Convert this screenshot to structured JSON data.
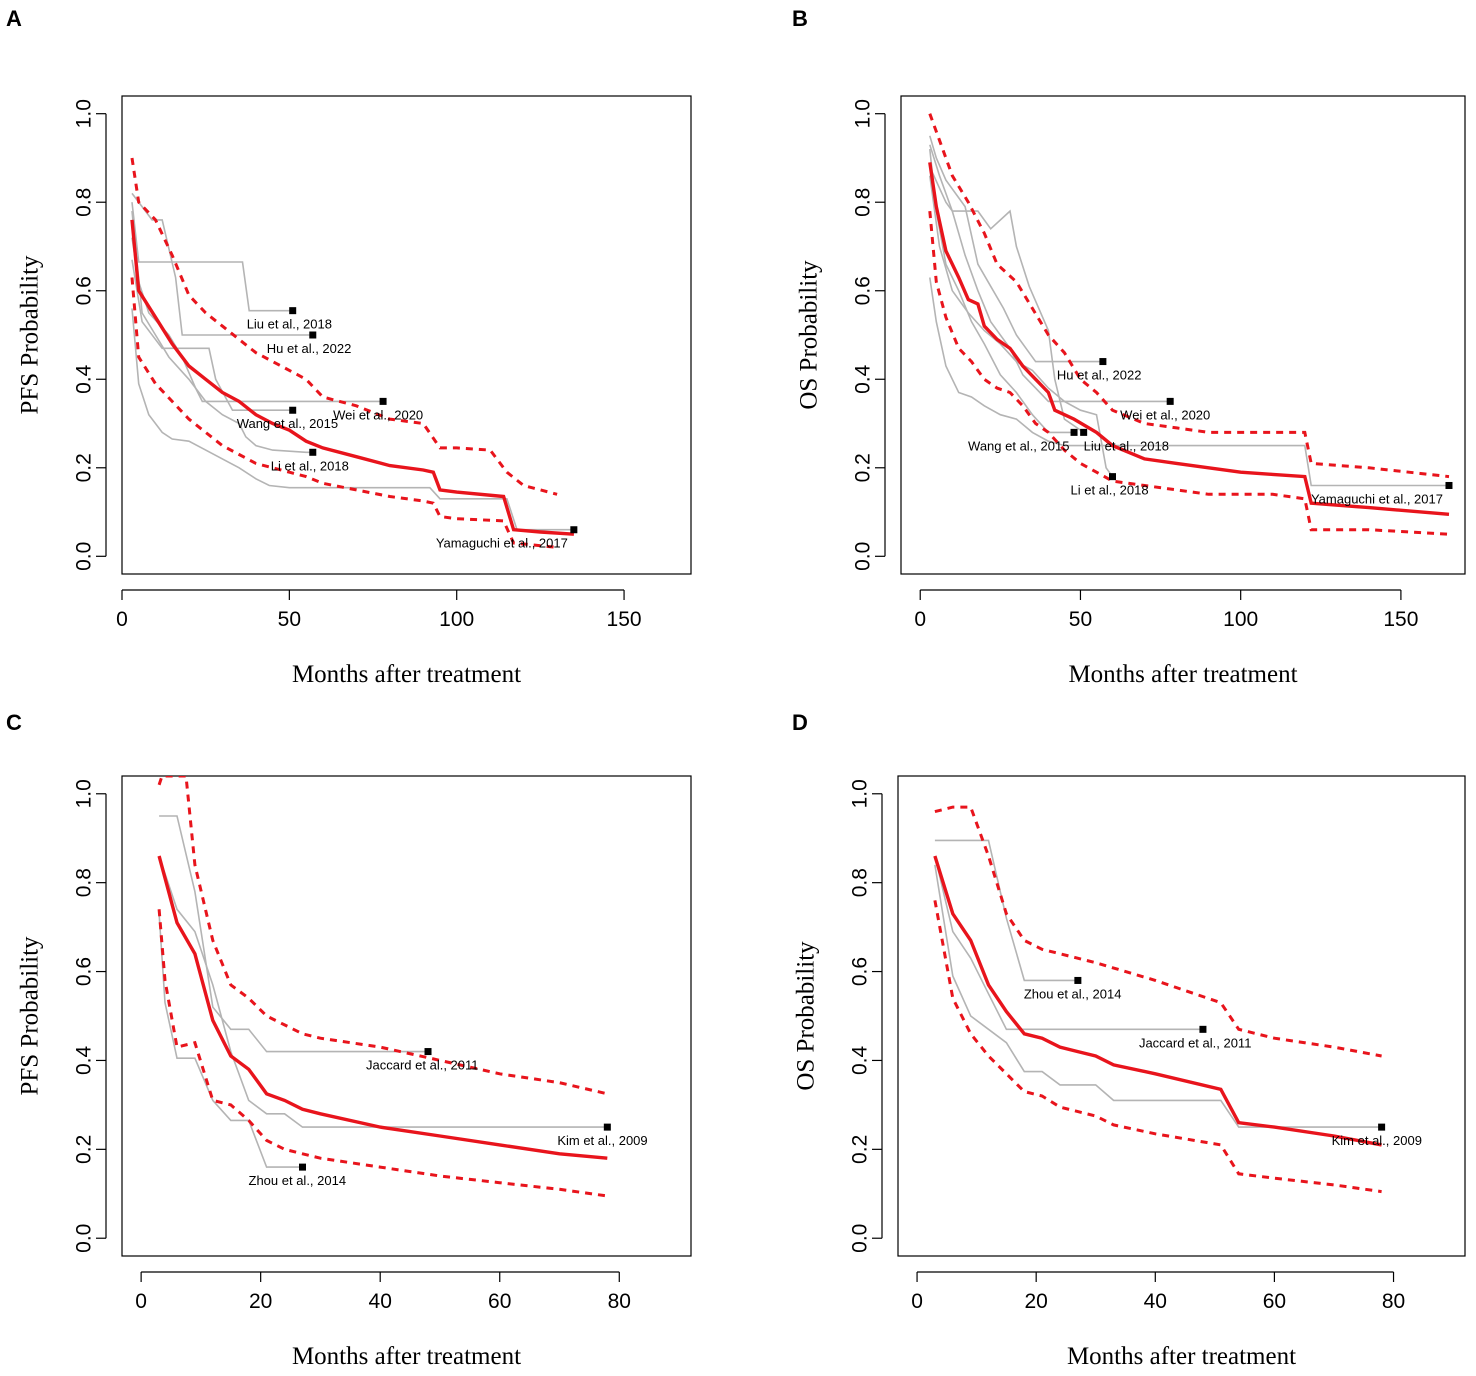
{
  "figure": {
    "panels": [
      "A",
      "B",
      "C",
      "D"
    ]
  },
  "chart_data": [
    {
      "panel": "A",
      "type": "line",
      "xlabel": "Months after treatment",
      "ylabel": "PFS Probability",
      "xlim": [
        0,
        170
      ],
      "ylim": [
        -0.04,
        1.04
      ],
      "xticks": [
        0,
        50,
        100,
        150
      ],
      "yticks": [
        0.0,
        0.2,
        0.4,
        0.6,
        0.8,
        1.0
      ],
      "pooled": {
        "name": "Pooled estimate",
        "x": [
          3,
          5,
          10,
          15,
          20,
          25,
          30,
          35,
          40,
          45,
          50,
          55,
          60,
          70,
          80,
          90,
          93,
          95,
          100,
          114,
          117,
          125,
          135
        ],
        "y": [
          0.76,
          0.6,
          0.54,
          0.48,
          0.43,
          0.4,
          0.37,
          0.35,
          0.32,
          0.3,
          0.285,
          0.26,
          0.245,
          0.225,
          0.205,
          0.195,
          0.19,
          0.15,
          0.145,
          0.135,
          0.06,
          0.055,
          0.05
        ]
      },
      "ci_upper": {
        "name": "Upper 95% CI",
        "x": [
          3,
          5,
          10,
          15,
          20,
          25,
          30,
          35,
          40,
          50,
          55,
          60,
          70,
          80,
          90,
          95,
          100,
          110,
          115,
          120,
          130
        ],
        "y": [
          0.9,
          0.8,
          0.76,
          0.68,
          0.59,
          0.55,
          0.52,
          0.49,
          0.46,
          0.42,
          0.4,
          0.36,
          0.34,
          0.31,
          0.3,
          0.245,
          0.245,
          0.24,
          0.19,
          0.16,
          0.14
        ]
      },
      "ci_lower": {
        "name": "Lower 95% CI",
        "x": [
          3,
          5,
          10,
          15,
          20,
          25,
          30,
          35,
          40,
          45,
          50,
          55,
          60,
          70,
          80,
          90,
          93,
          95,
          100,
          114,
          117,
          130
        ],
        "y": [
          0.63,
          0.45,
          0.39,
          0.35,
          0.31,
          0.28,
          0.25,
          0.23,
          0.21,
          0.2,
          0.19,
          0.18,
          0.165,
          0.15,
          0.135,
          0.125,
          0.12,
          0.09,
          0.085,
          0.08,
          0.03,
          0.02
        ]
      },
      "studies": [
        {
          "label": "Liu et al., 2018",
          "x": [
            3,
            5,
            36,
            38,
            51
          ],
          "y": [
            0.8,
            0.665,
            0.665,
            0.555,
            0.555
          ]
        },
        {
          "label": "Hu et al., 2022",
          "x": [
            3,
            9,
            12,
            16,
            18,
            57
          ],
          "y": [
            0.82,
            0.76,
            0.76,
            0.63,
            0.5,
            0.5
          ]
        },
        {
          "label": "Wei et al., 2020",
          "x": [
            3,
            5,
            8,
            14,
            18,
            22,
            24,
            78
          ],
          "y": [
            0.72,
            0.62,
            0.55,
            0.5,
            0.45,
            0.38,
            0.35,
            0.35
          ]
        },
        {
          "label": "Wang et al., 2015",
          "x": [
            3,
            6,
            12,
            26,
            28,
            33,
            51
          ],
          "y": [
            0.67,
            0.53,
            0.47,
            0.47,
            0.4,
            0.33,
            0.33
          ]
        },
        {
          "label": "Li et al., 2018",
          "x": [
            3,
            6,
            10,
            14,
            20,
            25,
            30,
            35,
            37,
            40,
            45,
            55,
            57
          ],
          "y": [
            0.78,
            0.55,
            0.5,
            0.45,
            0.4,
            0.35,
            0.32,
            0.3,
            0.27,
            0.25,
            0.24,
            0.235,
            0.235
          ]
        },
        {
          "label": "Yamaguchi et al., 2017",
          "x": [
            3,
            5,
            8,
            12,
            15,
            20,
            25,
            30,
            35,
            40,
            44,
            50,
            60,
            70,
            92,
            95,
            115,
            118,
            135
          ],
          "y": [
            0.56,
            0.39,
            0.32,
            0.28,
            0.265,
            0.26,
            0.24,
            0.22,
            0.2,
            0.175,
            0.16,
            0.155,
            0.155,
            0.155,
            0.155,
            0.13,
            0.13,
            0.06,
            0.06
          ]
        }
      ],
      "study_label_text": [
        "Liu et al., 2018",
        "Hu et al., 2022",
        "Wei et al., 2020",
        "Wang et al., 2015",
        "Li et al., 2018",
        "Yamaguchi et al., 2017"
      ]
    },
    {
      "panel": "B",
      "type": "line",
      "xlabel": "Months after treatment",
      "ylabel": "OS Probability",
      "xlim": [
        -6,
        170
      ],
      "ylim": [
        -0.04,
        1.04
      ],
      "xticks": [
        0,
        50,
        100,
        150
      ],
      "yticks": [
        0.0,
        0.2,
        0.4,
        0.6,
        0.8,
        1.0
      ],
      "pooled": {
        "name": "Pooled estimate",
        "x": [
          3,
          5,
          8,
          12,
          15,
          18,
          20,
          24,
          28,
          32,
          36,
          40,
          42,
          48,
          55,
          60,
          70,
          80,
          90,
          100,
          110,
          120,
          122,
          140,
          165
        ],
        "y": [
          0.89,
          0.79,
          0.69,
          0.63,
          0.58,
          0.57,
          0.52,
          0.49,
          0.47,
          0.43,
          0.4,
          0.37,
          0.33,
          0.31,
          0.28,
          0.25,
          0.22,
          0.21,
          0.2,
          0.19,
          0.185,
          0.18,
          0.12,
          0.11,
          0.095
        ]
      },
      "ci_upper": {
        "name": "Upper 95% CI",
        "x": [
          3,
          6,
          10,
          15,
          20,
          24,
          30,
          35,
          40,
          45,
          50,
          55,
          60,
          70,
          80,
          90,
          100,
          110,
          120,
          122,
          140,
          165
        ],
        "y": [
          1.0,
          0.94,
          0.86,
          0.8,
          0.73,
          0.66,
          0.62,
          0.56,
          0.5,
          0.46,
          0.4,
          0.37,
          0.33,
          0.3,
          0.29,
          0.28,
          0.28,
          0.28,
          0.28,
          0.21,
          0.2,
          0.18
        ]
      },
      "ci_lower": {
        "name": "Lower 95% CI",
        "x": [
          3,
          5,
          8,
          12,
          16,
          20,
          24,
          28,
          32,
          36,
          40,
          45,
          50,
          55,
          60,
          70,
          80,
          90,
          100,
          110,
          120,
          122,
          140,
          165
        ],
        "y": [
          0.78,
          0.62,
          0.54,
          0.47,
          0.44,
          0.4,
          0.38,
          0.37,
          0.34,
          0.3,
          0.28,
          0.24,
          0.21,
          0.19,
          0.17,
          0.16,
          0.15,
          0.14,
          0.14,
          0.14,
          0.13,
          0.06,
          0.06,
          0.05
        ]
      },
      "studies": [
        {
          "label": "Hu et al., 2022",
          "x": [
            3,
            5,
            8,
            14,
            18,
            22,
            26,
            30,
            33,
            36,
            57
          ],
          "y": [
            0.95,
            0.9,
            0.85,
            0.79,
            0.66,
            0.61,
            0.56,
            0.5,
            0.47,
            0.44,
            0.44
          ]
        },
        {
          "label": "Wei et al., 2020",
          "x": [
            3,
            6,
            10,
            14,
            18,
            22,
            28,
            32,
            36,
            40,
            78
          ],
          "y": [
            0.93,
            0.86,
            0.78,
            0.68,
            0.6,
            0.53,
            0.47,
            0.41,
            0.38,
            0.35,
            0.35
          ]
        },
        {
          "label": "Wang et al., 2015",
          "x": [
            3,
            5,
            8,
            12,
            16,
            20,
            25,
            30,
            35,
            40,
            48
          ],
          "y": [
            0.92,
            0.78,
            0.66,
            0.6,
            0.53,
            0.48,
            0.41,
            0.37,
            0.32,
            0.28,
            0.28
          ]
        },
        {
          "label": "Liu et al., 2018",
          "x": [
            3,
            8,
            10,
            18,
            22,
            28,
            30,
            34,
            40,
            42,
            45,
            51
          ],
          "y": [
            0.88,
            0.8,
            0.78,
            0.78,
            0.74,
            0.78,
            0.7,
            0.61,
            0.51,
            0.4,
            0.31,
            0.28
          ]
        },
        {
          "label": "Li et al., 2018",
          "x": [
            3,
            6,
            10,
            15,
            20,
            25,
            30,
            35,
            40,
            45,
            50,
            55,
            58,
            60
          ],
          "y": [
            0.86,
            0.7,
            0.6,
            0.55,
            0.51,
            0.48,
            0.44,
            0.42,
            0.38,
            0.35,
            0.33,
            0.32,
            0.2,
            0.18
          ]
        },
        {
          "label": "Yamaguchi et al., 2017",
          "x": [
            3,
            5,
            8,
            12,
            16,
            20,
            25,
            30,
            35,
            40,
            45,
            50,
            60,
            80,
            100,
            120,
            122,
            165
          ],
          "y": [
            0.63,
            0.53,
            0.43,
            0.37,
            0.36,
            0.34,
            0.32,
            0.31,
            0.28,
            0.26,
            0.25,
            0.25,
            0.25,
            0.25,
            0.25,
            0.25,
            0.16,
            0.16
          ]
        }
      ],
      "study_label_text": [
        "Hu et al., 2022",
        "Wei et al., 2020",
        "Wang et al., 2015",
        "Liu et al., 2018",
        "Li et al., 2018",
        "Yamaguchi et al., 2017"
      ]
    },
    {
      "panel": "C",
      "type": "line",
      "xlabel": "Months after treatment",
      "ylabel": "PFS Probability",
      "xlim": [
        -3.2,
        92
      ],
      "ylim": [
        -0.04,
        1.04
      ],
      "xticks": [
        0,
        20,
        40,
        60,
        80
      ],
      "yticks": [
        0.0,
        0.2,
        0.4,
        0.6,
        0.8,
        1.0
      ],
      "pooled": {
        "name": "Pooled estimate",
        "x": [
          3,
          6,
          9,
          12,
          15,
          18,
          21,
          24,
          27,
          30,
          40,
          50,
          60,
          70,
          78
        ],
        "y": [
          0.86,
          0.71,
          0.64,
          0.49,
          0.41,
          0.38,
          0.325,
          0.31,
          0.29,
          0.28,
          0.25,
          0.23,
          0.21,
          0.19,
          0.18
        ]
      },
      "ci_upper": {
        "name": "Upper 95% CI",
        "x": [
          3,
          3.5,
          7,
          7.5,
          9,
          12,
          15,
          18,
          21,
          24,
          27,
          30,
          40,
          50,
          60,
          70,
          78
        ],
        "y": [
          1.02,
          1.04,
          1.04,
          1.04,
          0.84,
          0.67,
          0.57,
          0.54,
          0.5,
          0.48,
          0.46,
          0.45,
          0.43,
          0.4,
          0.37,
          0.35,
          0.325
        ]
      },
      "ci_lower": {
        "name": "Lower 95% CI",
        "x": [
          3,
          4,
          6,
          9,
          12,
          15,
          18,
          21,
          24,
          27,
          30,
          40,
          50,
          60,
          70,
          78
        ],
        "y": [
          0.74,
          0.58,
          0.43,
          0.44,
          0.31,
          0.3,
          0.265,
          0.22,
          0.2,
          0.19,
          0.18,
          0.16,
          0.14,
          0.125,
          0.11,
          0.095
        ]
      },
      "studies": [
        {
          "label": "Jaccard et al., 2011",
          "x": [
            3,
            6,
            9,
            12,
            15,
            18,
            21,
            48
          ],
          "y": [
            0.95,
            0.95,
            0.78,
            0.52,
            0.47,
            0.47,
            0.42,
            0.42
          ]
        },
        {
          "label": "Kim et al., 2009",
          "x": [
            3,
            6,
            9,
            12,
            15,
            18,
            21,
            24,
            27,
            78
          ],
          "y": [
            0.86,
            0.74,
            0.69,
            0.57,
            0.42,
            0.31,
            0.28,
            0.28,
            0.25,
            0.25
          ]
        },
        {
          "label": "Zhou et al., 2014",
          "x": [
            3,
            4,
            6,
            9,
            12,
            15,
            18,
            21,
            27
          ],
          "y": [
            0.73,
            0.53,
            0.405,
            0.405,
            0.31,
            0.265,
            0.265,
            0.16,
            0.16
          ]
        }
      ],
      "study_label_text": [
        "Jaccard et al., 2011",
        "Kim et al., 2009",
        "Zhou et al., 2014"
      ]
    },
    {
      "panel": "D",
      "type": "line",
      "xlabel": "Months after treatment",
      "ylabel": "OS Probability",
      "xlim": [
        -3.2,
        92
      ],
      "ylim": [
        -0.04,
        1.04
      ],
      "xticks": [
        0,
        20,
        40,
        60,
        80
      ],
      "yticks": [
        0.0,
        0.2,
        0.4,
        0.6,
        0.8,
        1.0
      ],
      "pooled": {
        "name": "Pooled estimate",
        "x": [
          3,
          6,
          9,
          12,
          15,
          18,
          21,
          24,
          27,
          30,
          33,
          40,
          51,
          54,
          60,
          70,
          78
        ],
        "y": [
          0.86,
          0.73,
          0.67,
          0.57,
          0.51,
          0.46,
          0.45,
          0.43,
          0.42,
          0.41,
          0.39,
          0.37,
          0.335,
          0.26,
          0.25,
          0.23,
          0.21
        ]
      },
      "ci_upper": {
        "name": "Upper 95% CI",
        "x": [
          3,
          6,
          9,
          12,
          15,
          18,
          21,
          30,
          40,
          51,
          54,
          60,
          70,
          78
        ],
        "y": [
          0.96,
          0.97,
          0.97,
          0.86,
          0.73,
          0.67,
          0.65,
          0.62,
          0.58,
          0.53,
          0.47,
          0.45,
          0.43,
          0.41
        ]
      },
      "ci_lower": {
        "name": "Lower 95% CI",
        "x": [
          3,
          6,
          9,
          12,
          15,
          18,
          21,
          24,
          27,
          30,
          33,
          40,
          51,
          54,
          60,
          70,
          78
        ],
        "y": [
          0.76,
          0.54,
          0.46,
          0.41,
          0.37,
          0.33,
          0.32,
          0.295,
          0.285,
          0.275,
          0.255,
          0.235,
          0.21,
          0.145,
          0.135,
          0.12,
          0.105
        ]
      },
      "studies": [
        {
          "label": "Zhou et al., 2014",
          "x": [
            3,
            6,
            12,
            15,
            18,
            27
          ],
          "y": [
            0.895,
            0.895,
            0.895,
            0.72,
            0.58,
            0.58
          ]
        },
        {
          "label": "Jaccard et al., 2011",
          "x": [
            3,
            6,
            9,
            12,
            15,
            18,
            48
          ],
          "y": [
            0.86,
            0.69,
            0.63,
            0.55,
            0.47,
            0.47,
            0.47
          ]
        },
        {
          "label": "Kim et al., 2009",
          "x": [
            3,
            6,
            9,
            12,
            15,
            18,
            21,
            24,
            30,
            33,
            40,
            51,
            54,
            78
          ],
          "y": [
            0.84,
            0.59,
            0.5,
            0.47,
            0.44,
            0.375,
            0.375,
            0.345,
            0.345,
            0.31,
            0.31,
            0.31,
            0.25,
            0.25
          ]
        }
      ],
      "study_label_text": [
        "Zhou et al., 2014",
        "Jaccard et al., 2011",
        "Kim et al., 2009"
      ]
    }
  ]
}
